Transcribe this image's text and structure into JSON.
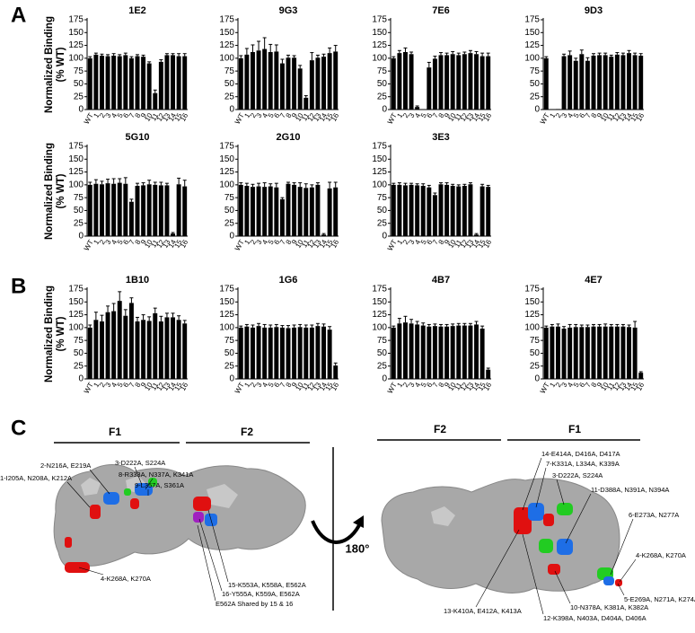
{
  "panel_labels": [
    "A",
    "B",
    "C"
  ],
  "chart_data": [
    {
      "type": "bar",
      "title": "1E2",
      "ylabel": [
        "Normalized Binding",
        "(% WT)"
      ],
      "color": "#000000",
      "categories": [
        "WT",
        "1",
        "2",
        "3",
        "4",
        "5",
        "6",
        "7",
        "8",
        "9",
        "10",
        "11",
        "12",
        "13",
        "14",
        "15",
        "16"
      ],
      "values": [
        100,
        107,
        105,
        104,
        105,
        104,
        106,
        100,
        104,
        103,
        90,
        32,
        93,
        106,
        106,
        104,
        104
      ],
      "errors": [
        3,
        3,
        3,
        3,
        4,
        3,
        4,
        3,
        3,
        3,
        3,
        6,
        4,
        3,
        3,
        5,
        5
      ],
      "ylim": [
        0,
        175
      ],
      "yticks": [
        0,
        25,
        50,
        75,
        100,
        125,
        150,
        175
      ]
    },
    {
      "type": "bar",
      "title": "9G3",
      "color": "#000000",
      "categories": [
        "WT",
        "1",
        "2",
        "3",
        "4",
        "5",
        "6",
        "7",
        "8",
        "9",
        "10",
        "11",
        "12",
        "13",
        "14",
        "15",
        "16"
      ],
      "values": [
        100,
        107,
        112,
        115,
        118,
        112,
        113,
        90,
        101,
        101,
        80,
        23,
        96,
        101,
        103,
        110,
        113
      ],
      "errors": [
        5,
        12,
        14,
        18,
        22,
        15,
        13,
        8,
        5,
        4,
        6,
        4,
        15,
        5,
        5,
        10,
        12
      ],
      "ylim": [
        0,
        175
      ],
      "yticks": [
        0,
        25,
        50,
        75,
        100,
        125,
        150,
        175
      ]
    },
    {
      "type": "bar",
      "title": "7E6",
      "color": "#000000",
      "categories": [
        "WT",
        "1",
        "2",
        "3",
        "4",
        "5",
        "6",
        "7",
        "8",
        "9",
        "10",
        "11",
        "12",
        "13",
        "14",
        "15",
        "16"
      ],
      "values": [
        100,
        110,
        112,
        108,
        5,
        0,
        82,
        99,
        106,
        106,
        108,
        106,
        108,
        110,
        108,
        104,
        104
      ],
      "errors": [
        3,
        5,
        8,
        4,
        2,
        0,
        10,
        5,
        5,
        4,
        5,
        4,
        4,
        5,
        5,
        6,
        6
      ],
      "ylim": [
        0,
        175
      ],
      "yticks": [
        0,
        25,
        50,
        75,
        100,
        125,
        150,
        175
      ]
    },
    {
      "type": "bar",
      "title": "9D3",
      "color": "#000000",
      "categories": [
        "WT",
        "1",
        "2",
        "3",
        "4",
        "5",
        "6",
        "7",
        "8",
        "9",
        "10",
        "11",
        "12",
        "13",
        "14",
        "15",
        "16"
      ],
      "values": [
        100,
        0,
        1,
        104,
        106,
        95,
        108,
        95,
        105,
        106,
        106,
        103,
        107,
        106,
        110,
        106,
        105
      ],
      "errors": [
        3,
        0,
        0,
        4,
        8,
        5,
        8,
        6,
        4,
        4,
        4,
        3,
        4,
        4,
        5,
        4,
        4
      ],
      "ylim": [
        0,
        175
      ],
      "yticks": [
        0,
        25,
        50,
        75,
        100,
        125,
        150,
        175
      ]
    },
    {
      "type": "bar",
      "title": "5G10",
      "ylabel": [
        "Normalized Binding",
        "(% WT)"
      ],
      "color": "#000000",
      "categories": [
        "WT",
        "1",
        "2",
        "3",
        "4",
        "5",
        "6",
        "7",
        "8",
        "9",
        "10",
        "11",
        "12",
        "13",
        "14",
        "15",
        "16"
      ],
      "values": [
        100,
        102,
        101,
        103,
        102,
        104,
        102,
        67,
        98,
        99,
        101,
        100,
        99,
        99,
        5,
        101,
        97
      ],
      "errors": [
        5,
        8,
        6,
        8,
        10,
        8,
        12,
        5,
        5,
        5,
        8,
        5,
        6,
        4,
        2,
        12,
        12
      ],
      "ylim": [
        0,
        175
      ],
      "yticks": [
        0,
        25,
        50,
        75,
        100,
        125,
        150,
        175
      ]
    },
    {
      "type": "bar",
      "title": "2G10",
      "color": "#000000",
      "categories": [
        "WT",
        "1",
        "2",
        "3",
        "4",
        "5",
        "6",
        "7",
        "8",
        "9",
        "10",
        "11",
        "12",
        "13",
        "14",
        "15",
        "16"
      ],
      "values": [
        100,
        98,
        96,
        97,
        96,
        97,
        95,
        72,
        102,
        100,
        96,
        94,
        95,
        100,
        3,
        93,
        95
      ],
      "errors": [
        4,
        5,
        5,
        6,
        8,
        5,
        8,
        3,
        3,
        4,
        8,
        8,
        5,
        4,
        2,
        12,
        10
      ],
      "ylim": [
        0,
        175
      ],
      "yticks": [
        0,
        25,
        50,
        75,
        100,
        125,
        150,
        175
      ]
    },
    {
      "type": "bar",
      "title": "3E3",
      "color": "#000000",
      "categories": [
        "WT",
        "1",
        "2",
        "3",
        "4",
        "5",
        "6",
        "7",
        "8",
        "9",
        "10",
        "11",
        "12",
        "13",
        "14",
        "15",
        "16"
      ],
      "values": [
        100,
        100,
        99,
        100,
        99,
        98,
        95,
        80,
        101,
        100,
        98,
        97,
        98,
        101,
        3,
        97,
        96
      ],
      "errors": [
        3,
        4,
        4,
        3,
        3,
        4,
        4,
        4,
        3,
        4,
        3,
        3,
        3,
        3,
        2,
        4,
        3
      ],
      "ylim": [
        0,
        175
      ],
      "yticks": [
        0,
        25,
        50,
        75,
        100,
        125,
        150,
        175
      ]
    },
    {
      "type": "bar",
      "title": "1B10",
      "ylabel": [
        "Normalized Binding",
        "(% WT)"
      ],
      "color": "#000000",
      "categories": [
        "WT",
        "1",
        "2",
        "3",
        "4",
        "5",
        "6",
        "7",
        "8",
        "9",
        "10",
        "11",
        "12",
        "13",
        "14",
        "15",
        "16"
      ],
      "values": [
        100,
        115,
        112,
        130,
        132,
        152,
        123,
        148,
        112,
        115,
        113,
        128,
        112,
        120,
        120,
        115,
        108
      ],
      "errors": [
        5,
        15,
        12,
        12,
        15,
        18,
        12,
        10,
        8,
        10,
        8,
        10,
        10,
        8,
        8,
        8,
        6
      ],
      "ylim": [
        0,
        175
      ],
      "yticks": [
        0,
        25,
        50,
        75,
        100,
        125,
        150,
        175
      ]
    },
    {
      "type": "bar",
      "title": "1G6",
      "color": "#000000",
      "categories": [
        "WT",
        "1",
        "2",
        "3",
        "4",
        "5",
        "6",
        "7",
        "8",
        "9",
        "10",
        "11",
        "12",
        "13",
        "14",
        "15",
        "16"
      ],
      "values": [
        100,
        102,
        100,
        103,
        100,
        100,
        101,
        100,
        99,
        100,
        101,
        100,
        100,
        103,
        102,
        96,
        26
      ],
      "errors": [
        3,
        4,
        5,
        5,
        6,
        5,
        5,
        4,
        5,
        5,
        5,
        5,
        5,
        5,
        5,
        6,
        5
      ],
      "ylim": [
        0,
        175
      ],
      "yticks": [
        0,
        25,
        50,
        75,
        100,
        125,
        150,
        175
      ]
    },
    {
      "type": "bar",
      "title": "4B7",
      "color": "#000000",
      "categories": [
        "WT",
        "1",
        "2",
        "3",
        "4",
        "5",
        "6",
        "7",
        "8",
        "9",
        "10",
        "11",
        "12",
        "13",
        "14",
        "15",
        "16"
      ],
      "values": [
        100,
        108,
        110,
        108,
        106,
        104,
        102,
        103,
        102,
        102,
        103,
        104,
        104,
        104,
        106,
        98,
        18
      ],
      "errors": [
        3,
        10,
        12,
        8,
        6,
        5,
        4,
        4,
        4,
        4,
        4,
        4,
        4,
        4,
        6,
        5,
        3
      ],
      "ylim": [
        0,
        175
      ],
      "yticks": [
        0,
        25,
        50,
        75,
        100,
        125,
        150,
        175
      ]
    },
    {
      "type": "bar",
      "title": "4E7",
      "color": "#000000",
      "categories": [
        "WT",
        "1",
        "2",
        "3",
        "4",
        "5",
        "6",
        "7",
        "8",
        "9",
        "10",
        "11",
        "12",
        "13",
        "14",
        "15",
        "16"
      ],
      "values": [
        100,
        102,
        102,
        98,
        100,
        101,
        101,
        101,
        102,
        102,
        102,
        102,
        102,
        102,
        101,
        100,
        12
      ],
      "errors": [
        3,
        4,
        5,
        4,
        6,
        5,
        4,
        4,
        4,
        4,
        5,
        4,
        4,
        4,
        4,
        12,
        2
      ],
      "ylim": [
        0,
        175
      ],
      "yticks": [
        0,
        25,
        50,
        75,
        100,
        125,
        150,
        175
      ]
    }
  ],
  "panel_c": {
    "left_header": [
      "F1",
      "F2"
    ],
    "right_header": [
      "F2",
      "F1"
    ],
    "rotation": "180°",
    "left_labels": [
      "1-I205A, N208A, K212A",
      "2-N216A, E219A",
      "3-D222A, S224A",
      "8-R333A, N337A, K341A",
      "9-L357A, S361A",
      "4-K268A, K270A",
      "15-K553A, K558A, E562A",
      "16-Y555A, K559A, E562A",
      "E562A Shared by 15 & 16"
    ],
    "right_labels": [
      "14-E414A, D416A, D417A",
      "7-K331A, L334A, K339A",
      "3-D222A, S224A",
      "11-D388A, N391A, N394A",
      "6-E273A, N277A",
      "4-K268A, K270A",
      "5-E269A, N271A, K274A",
      "10-N378A, K381A, K382A",
      "12-K398A, N403A, D404A, D406A",
      "13-K410A, E412A, K413A"
    ]
  }
}
